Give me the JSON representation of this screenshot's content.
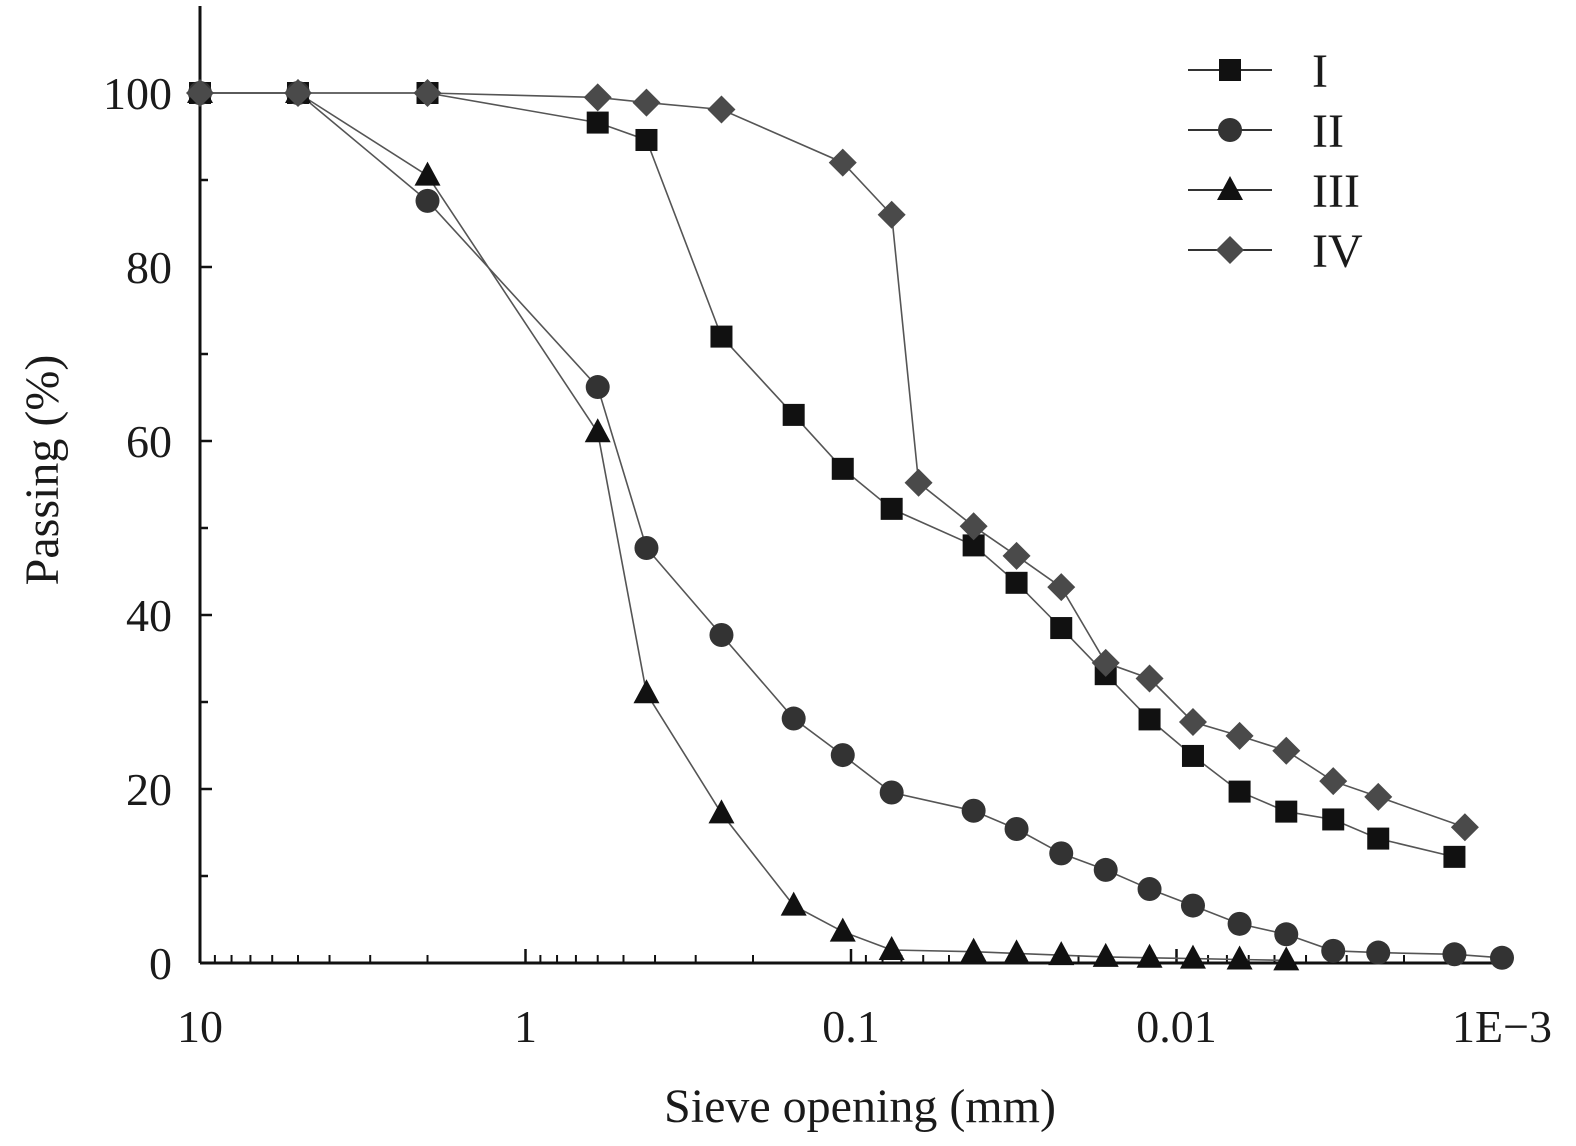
{
  "chart_data": {
    "type": "line",
    "xlabel": "Sieve opening (mm)",
    "ylabel": "Passing (%)",
    "x_scale": "log",
    "x_reversed": true,
    "xlim": [
      10,
      0.001
    ],
    "ylim": [
      0,
      110
    ],
    "x_tick_labels": [
      {
        "value": 10,
        "label": "10"
      },
      {
        "value": 1,
        "label": "1"
      },
      {
        "value": 0.1,
        "label": "0.1"
      },
      {
        "value": 0.01,
        "label": "0.01"
      },
      {
        "value": 0.001,
        "label": "1E−3"
      }
    ],
    "y_tick_labels": [
      {
        "value": 0,
        "label": "0"
      },
      {
        "value": 20,
        "label": "20"
      },
      {
        "value": 40,
        "label": "40"
      },
      {
        "value": 60,
        "label": "60"
      },
      {
        "value": 80,
        "label": "80"
      },
      {
        "value": 100,
        "label": "100"
      }
    ],
    "grid": false,
    "legend_position": "top-right",
    "series": [
      {
        "name": "I",
        "marker": "square",
        "color": "#111111",
        "points": [
          [
            10,
            100
          ],
          [
            5,
            100
          ],
          [
            2,
            100
          ],
          [
            0.6,
            96.6
          ],
          [
            0.425,
            94.6
          ],
          [
            0.25,
            72
          ],
          [
            0.15,
            63
          ],
          [
            0.106,
            56.8
          ],
          [
            0.075,
            52.2
          ],
          [
            0.042,
            48
          ],
          [
            0.031,
            43.7
          ],
          [
            0.0226,
            38.5
          ],
          [
            0.0165,
            33.2
          ],
          [
            0.0121,
            28
          ],
          [
            0.0089,
            23.8
          ],
          [
            0.0064,
            19.7
          ],
          [
            0.0046,
            17.4
          ],
          [
            0.0033,
            16.5
          ],
          [
            0.0024,
            14.3
          ],
          [
            0.0014,
            12.2
          ]
        ]
      },
      {
        "name": "II",
        "marker": "circle",
        "color": "#333333",
        "points": [
          [
            10,
            100
          ],
          [
            5,
            100
          ],
          [
            2,
            87.6
          ],
          [
            0.6,
            66.2
          ],
          [
            0.425,
            47.7
          ],
          [
            0.25,
            37.7
          ],
          [
            0.15,
            28.1
          ],
          [
            0.106,
            23.9
          ],
          [
            0.075,
            19.6
          ],
          [
            0.042,
            17.5
          ],
          [
            0.031,
            15.4
          ],
          [
            0.0226,
            12.6
          ],
          [
            0.0165,
            10.7
          ],
          [
            0.0121,
            8.5
          ],
          [
            0.0089,
            6.6
          ],
          [
            0.0064,
            4.5
          ],
          [
            0.0046,
            3.3
          ],
          [
            0.0033,
            1.4
          ],
          [
            0.0024,
            1.2
          ],
          [
            0.0014,
            1.0
          ],
          [
            0.001,
            0.6
          ]
        ]
      },
      {
        "name": "III",
        "marker": "triangle",
        "color": "#111111",
        "points": [
          [
            10,
            100
          ],
          [
            5,
            100
          ],
          [
            2,
            90.5
          ],
          [
            0.6,
            61
          ],
          [
            0.425,
            31
          ],
          [
            0.25,
            17.2
          ],
          [
            0.15,
            6.6
          ],
          [
            0.106,
            3.6
          ],
          [
            0.075,
            1.5
          ],
          [
            0.042,
            1.3
          ],
          [
            0.031,
            1.1
          ],
          [
            0.0226,
            0.9
          ],
          [
            0.0165,
            0.7
          ],
          [
            0.0121,
            0.6
          ],
          [
            0.0089,
            0.5
          ],
          [
            0.0064,
            0.4
          ],
          [
            0.0046,
            0.3
          ]
        ]
      },
      {
        "name": "IV",
        "marker": "diamond",
        "color": "#4a4a4a",
        "points": [
          [
            10,
            100
          ],
          [
            5,
            100
          ],
          [
            2,
            100
          ],
          [
            0.6,
            99.5
          ],
          [
            0.425,
            98.9
          ],
          [
            0.25,
            98.1
          ],
          [
            0.106,
            92
          ],
          [
            0.075,
            86
          ],
          [
            0.062,
            55.2
          ],
          [
            0.042,
            50.2
          ],
          [
            0.031,
            46.8
          ],
          [
            0.0226,
            43.2
          ],
          [
            0.0165,
            34.5
          ],
          [
            0.0121,
            32.7
          ],
          [
            0.0089,
            27.7
          ],
          [
            0.0064,
            26.1
          ],
          [
            0.0046,
            24.4
          ],
          [
            0.0033,
            20.9
          ],
          [
            0.0024,
            19.1
          ],
          [
            0.0013,
            15.6
          ]
        ]
      }
    ]
  }
}
